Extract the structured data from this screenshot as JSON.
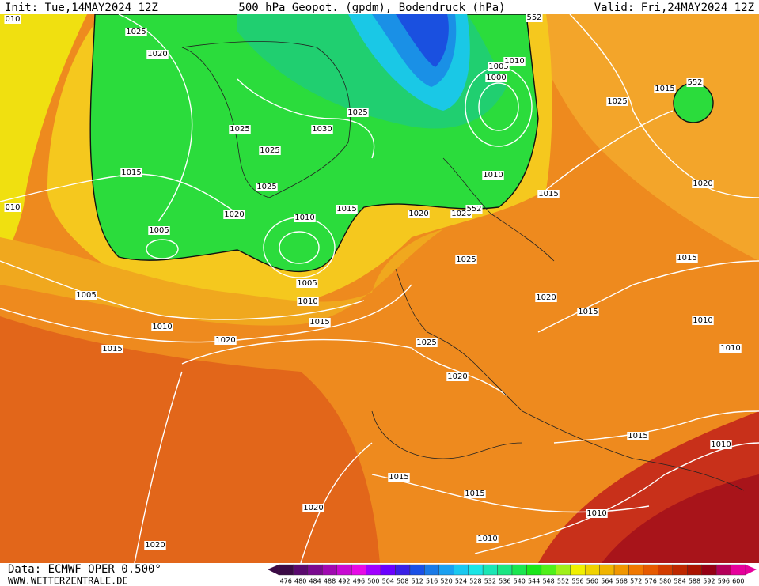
{
  "header": {
    "init": "Init: Tue,14MAY2024 12Z",
    "title": "500 hPa Geopot. (gpdm), Bodendruck (hPa)",
    "valid": "Valid: Fri,24MAY2024 12Z"
  },
  "footer": {
    "source": "Data: ECMWF OPER 0.500°",
    "site": "WWW.WETTERZENTRALE.DE"
  },
  "contour_labels": [
    "1025",
    "1020",
    "1025",
    "1025",
    "1030",
    "1025",
    "1025",
    "1015",
    "1020",
    "1010",
    "1015",
    "1005",
    "1005",
    "1005",
    "1010",
    "1015",
    "1010",
    "1015",
    "1020",
    "1020",
    "1020",
    "1025",
    "1020",
    "1015",
    "1025",
    "1020",
    "1010",
    "1015",
    "1000",
    "1005",
    "1010",
    "1025",
    "1015",
    "1020",
    "1015",
    "1010",
    "1010",
    "1015",
    "1010",
    "1015",
    "1015",
    "1020",
    "1010",
    "1010",
    "1020",
    "010",
    "010",
    "552",
    "552",
    "552"
  ],
  "scale": [
    476,
    480,
    484,
    488,
    492,
    496,
    500,
    504,
    508,
    512,
    516,
    520,
    524,
    528,
    532,
    536,
    540,
    544,
    548,
    552,
    556,
    560,
    564,
    568,
    572,
    576,
    580,
    584,
    588,
    592,
    596,
    600
  ],
  "scale_colors": [
    "#3b0a45",
    "#5a0a6e",
    "#7a0a8f",
    "#a00ab0",
    "#c80ad2",
    "#e60ae6",
    "#a000ff",
    "#6a00ff",
    "#3a20e6",
    "#1a50e6",
    "#1a7ae6",
    "#1aa0f0",
    "#1ac8f0",
    "#1ae6e6",
    "#1ae6b4",
    "#1ae682",
    "#1ae650",
    "#1ae61a",
    "#50f01a",
    "#a0f01a",
    "#f0f000",
    "#f0d200",
    "#f0b400",
    "#f09600",
    "#f07800",
    "#e65a00",
    "#d23c00",
    "#be2800",
    "#aa1400",
    "#960014",
    "#b4005a",
    "#e6009b"
  ]
}
